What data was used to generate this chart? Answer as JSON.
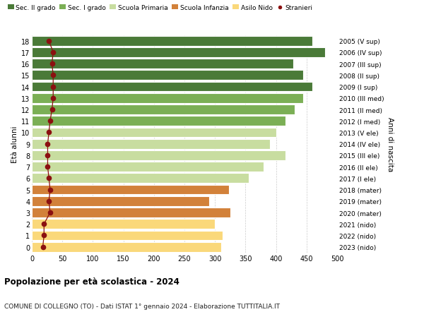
{
  "ages": [
    0,
    1,
    2,
    3,
    4,
    5,
    6,
    7,
    8,
    9,
    10,
    11,
    12,
    13,
    14,
    15,
    16,
    17,
    18
  ],
  "labels_right": [
    "2023 (nido)",
    "2022 (nido)",
    "2021 (nido)",
    "2020 (mater)",
    "2019 (mater)",
    "2018 (mater)",
    "2017 (I ele)",
    "2016 (II ele)",
    "2015 (III ele)",
    "2014 (IV ele)",
    "2013 (V ele)",
    "2012 (I med)",
    "2011 (II med)",
    "2010 (III med)",
    "2009 (I sup)",
    "2008 (II sup)",
    "2007 (III sup)",
    "2006 (IV sup)",
    "2005 (V sup)"
  ],
  "bar_values": [
    310,
    313,
    300,
    325,
    290,
    323,
    355,
    380,
    415,
    390,
    400,
    415,
    430,
    445,
    460,
    445,
    428,
    480,
    460
  ],
  "stranieri_values": [
    18,
    20,
    20,
    30,
    28,
    30,
    28,
    26,
    26,
    26,
    28,
    30,
    33,
    35,
    35,
    35,
    33,
    35,
    28
  ],
  "color_map": [
    "#FAD87A",
    "#FAD87A",
    "#FAD87A",
    "#D2813A",
    "#D2813A",
    "#D2813A",
    "#C8DDA0",
    "#C8DDA0",
    "#C8DDA0",
    "#C8DDA0",
    "#C8DDA0",
    "#7BAF55",
    "#7BAF55",
    "#7BAF55",
    "#4A7A38",
    "#4A7A38",
    "#4A7A38",
    "#4A7A38",
    "#4A7A38"
  ],
  "legend_labels": [
    "Sec. II grado",
    "Sec. I grado",
    "Scuola Primaria",
    "Scuola Infanzia",
    "Asilo Nido",
    "Stranieri"
  ],
  "legend_colors": [
    "#4A7A38",
    "#7BAF55",
    "#C8DDA0",
    "#D2813A",
    "#FAD87A",
    "#8B1010"
  ],
  "title_bold": "Popolazione per età scolastica - 2024",
  "title_sub": "COMUNE DI COLLEGNO (TO) - Dati ISTAT 1° gennaio 2024 - Elaborazione TUTTITALIA.IT",
  "ylabel_left": "Età alunni",
  "ylabel_right": "Anni di nascita",
  "xlim": [
    0,
    500
  ],
  "xticks": [
    0,
    50,
    100,
    150,
    200,
    250,
    300,
    350,
    400,
    450,
    500
  ],
  "bg_color": "#FFFFFF",
  "grid_color": "#CCCCCC",
  "stranieri_color": "#8B1010"
}
